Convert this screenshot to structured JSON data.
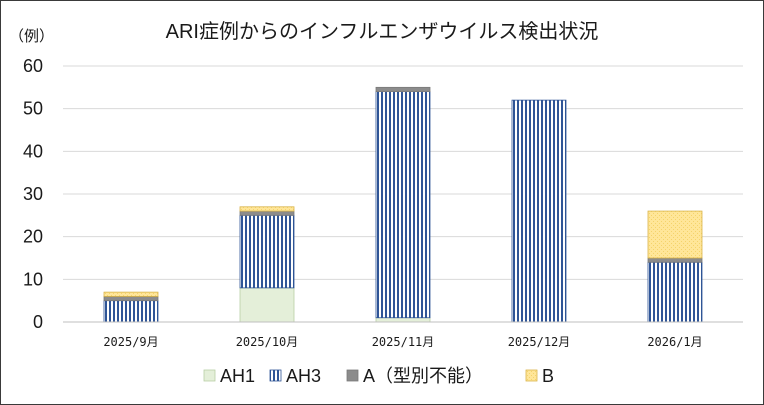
{
  "chart_data": {
    "type": "bar",
    "stacked": true,
    "title": "ARI症例からのインフルエンザウイルス検出状況",
    "unit_label": "（例）",
    "categories": [
      "2025/9月",
      "2025/10月",
      "2025/11月",
      "2025/12月",
      "2026/1月"
    ],
    "ylim": [
      0,
      60
    ],
    "yticks": [
      "0",
      "10",
      "20",
      "30",
      "40",
      "50",
      "60"
    ],
    "grid": true,
    "legend_position": "bottom",
    "series": [
      {
        "name": "AH1",
        "values": [
          0,
          8,
          1,
          0,
          0
        ],
        "color": "#e4efd9",
        "pattern": "solid"
      },
      {
        "name": "AH3",
        "values": [
          5,
          17,
          53,
          52,
          14
        ],
        "color": "#2f5597",
        "pattern": "vertical-stripes"
      },
      {
        "name": "A（型別不能）",
        "values": [
          1,
          1,
          1,
          0,
          1
        ],
        "color": "#8c8c8c",
        "pattern": "solid"
      },
      {
        "name": "B",
        "values": [
          1,
          1,
          0,
          0,
          11
        ],
        "color": "#ffe699",
        "pattern": "dots"
      }
    ]
  }
}
